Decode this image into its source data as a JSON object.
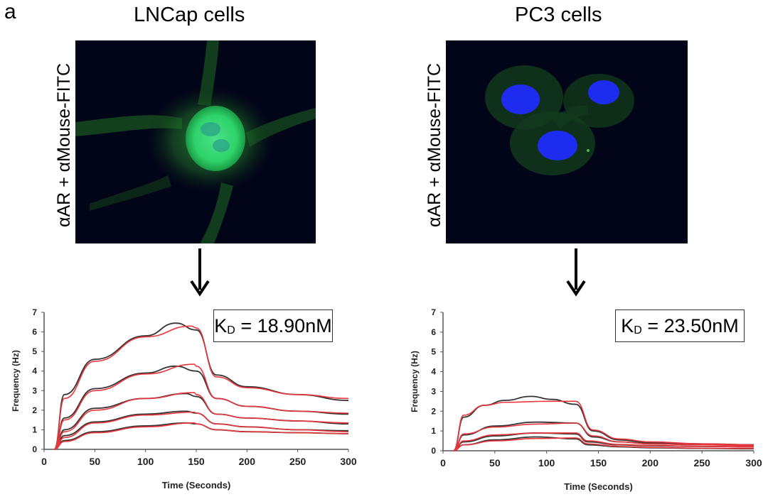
{
  "panel_label": "a",
  "panels": [
    {
      "title": "LNCap cells",
      "stain_label": "αAR + αMouse-FITC",
      "kd_symbol": "K",
      "kd_subscript": "D",
      "kd_value": " = 18.90nM"
    },
    {
      "title": "PC3 cells",
      "stain_label": "αAR + αMouse-FITC",
      "kd_symbol": "K",
      "kd_subscript": "D",
      "kd_value": " = 23.50nM"
    }
  ],
  "colors": {
    "measured": "#333333",
    "fit": "#e8363c",
    "fitc_green": "#35d66a",
    "dapi_blue": "#1e2cf0",
    "background": "#020418"
  },
  "chart_data": [
    {
      "type": "line",
      "xlabel": "Time (Seconds)",
      "ylabel": "Frequency (Hz)",
      "xlim": [
        0,
        300
      ],
      "ylim": [
        0,
        7
      ],
      "xticks": [
        0,
        50,
        100,
        150,
        200,
        250,
        300
      ],
      "yticks": [
        0,
        1,
        2,
        3,
        4,
        5,
        6,
        7
      ],
      "grid": false,
      "association_start": 10,
      "dissociation_start": 150,
      "series": [
        {
          "role": "measured",
          "values_at": {
            "10": 0,
            "20": 2.8,
            "50": 4.6,
            "100": 5.8,
            "130": 6.45,
            "150": 6.1,
            "170": 3.8,
            "200": 3.2,
            "250": 2.8,
            "300": 2.5
          }
        },
        {
          "role": "fit",
          "values_at": {
            "10": 0,
            "20": 2.6,
            "50": 4.5,
            "100": 5.75,
            "145": 6.3,
            "150": 6.2,
            "170": 3.7,
            "200": 3.15,
            "250": 2.8,
            "300": 2.6
          }
        },
        {
          "role": "measured",
          "values_at": {
            "10": 0,
            "20": 1.6,
            "50": 3.1,
            "100": 3.9,
            "130": 4.25,
            "150": 4.0,
            "170": 2.6,
            "200": 2.2,
            "250": 1.95,
            "300": 1.8
          }
        },
        {
          "role": "fit",
          "values_at": {
            "10": 0,
            "20": 1.5,
            "50": 3.0,
            "100": 3.85,
            "148": 4.35,
            "150": 4.25,
            "170": 2.6,
            "200": 2.2,
            "250": 1.95,
            "300": 1.85
          }
        },
        {
          "role": "measured",
          "values_at": {
            "10": 0,
            "20": 1.0,
            "50": 2.1,
            "100": 2.6,
            "140": 2.85,
            "150": 2.7,
            "170": 1.8,
            "200": 1.6,
            "250": 1.45,
            "300": 1.3
          }
        },
        {
          "role": "fit",
          "values_at": {
            "10": 0,
            "20": 0.9,
            "50": 2.0,
            "100": 2.6,
            "148": 2.9,
            "150": 2.8,
            "170": 1.8,
            "200": 1.6,
            "250": 1.45,
            "300": 1.35
          }
        },
        {
          "role": "measured",
          "values_at": {
            "10": 0,
            "20": 0.7,
            "50": 1.4,
            "100": 1.8,
            "140": 1.95,
            "150": 1.85,
            "170": 1.3,
            "200": 1.15,
            "250": 1.0,
            "300": 0.95
          }
        },
        {
          "role": "fit",
          "values_at": {
            "10": 0,
            "20": 0.6,
            "50": 1.35,
            "100": 1.75,
            "148": 1.9,
            "150": 1.85,
            "170": 1.3,
            "200": 1.15,
            "250": 1.0,
            "300": 0.9
          }
        },
        {
          "role": "measured",
          "values_at": {
            "10": 0,
            "20": 0.45,
            "50": 0.9,
            "100": 1.2,
            "140": 1.35,
            "150": 1.3,
            "170": 1.0,
            "200": 0.9,
            "250": 0.85,
            "300": 0.8
          }
        },
        {
          "role": "fit",
          "values_at": {
            "10": 0,
            "20": 0.4,
            "50": 0.85,
            "100": 1.15,
            "148": 1.35,
            "150": 1.3,
            "170": 1.0,
            "200": 0.9,
            "250": 0.85,
            "300": 0.8
          }
        }
      ]
    },
    {
      "type": "line",
      "xlabel": "Time (Seconds)",
      "ylabel": "Frequency (Hz)",
      "xlim": [
        0,
        300
      ],
      "ylim": [
        0,
        7
      ],
      "xticks": [
        0,
        50,
        100,
        150,
        200,
        250,
        300
      ],
      "yticks": [
        0,
        1,
        2,
        3,
        4,
        5,
        6,
        7
      ],
      "grid": false,
      "association_start": 10,
      "dissociation_start": 128,
      "series": [
        {
          "role": "measured",
          "values_at": {
            "10": 0,
            "20": 1.7,
            "40": 2.3,
            "60": 2.55,
            "85": 2.75,
            "105": 2.6,
            "128": 2.35,
            "145": 1.0,
            "170": 0.55,
            "200": 0.4,
            "250": 0.35,
            "300": 0.3
          }
        },
        {
          "role": "fit",
          "values_at": {
            "10": 0,
            "20": 1.8,
            "40": 2.3,
            "60": 2.45,
            "100": 2.5,
            "128": 2.5,
            "145": 1.05,
            "170": 0.6,
            "200": 0.45,
            "250": 0.35,
            "300": 0.3
          }
        },
        {
          "role": "measured",
          "values_at": {
            "10": 0,
            "20": 0.8,
            "50": 1.25,
            "90": 1.45,
            "128": 1.4,
            "145": 0.7,
            "170": 0.45,
            "200": 0.35,
            "250": 0.3,
            "300": 0.3
          }
        },
        {
          "role": "fit",
          "values_at": {
            "10": 0,
            "20": 0.85,
            "50": 1.2,
            "90": 1.35,
            "128": 1.4,
            "145": 0.75,
            "170": 0.45,
            "200": 0.35,
            "250": 0.3,
            "300": 0.25
          }
        },
        {
          "role": "measured",
          "values_at": {
            "10": 0,
            "20": 0.45,
            "50": 0.75,
            "90": 0.9,
            "128": 0.85,
            "140": 0.45,
            "170": 0.3,
            "200": 0.25,
            "250": 0.22,
            "300": 0.2
          }
        },
        {
          "role": "fit",
          "values_at": {
            "10": 0,
            "20": 0.5,
            "50": 0.8,
            "90": 0.9,
            "128": 0.9,
            "140": 0.5,
            "170": 0.32,
            "200": 0.27,
            "250": 0.22,
            "300": 0.2
          }
        },
        {
          "role": "measured",
          "values_at": {
            "10": 0,
            "20": 0.3,
            "50": 0.55,
            "90": 0.7,
            "128": 0.6,
            "140": 0.3,
            "170": 0.2,
            "200": 0.15,
            "250": 0.12,
            "300": 0.1
          }
        },
        {
          "role": "fit",
          "values_at": {
            "10": 0,
            "20": 0.3,
            "50": 0.5,
            "90": 0.62,
            "128": 0.65,
            "140": 0.35,
            "170": 0.22,
            "200": 0.17,
            "250": 0.13,
            "300": 0.12
          }
        }
      ]
    }
  ]
}
